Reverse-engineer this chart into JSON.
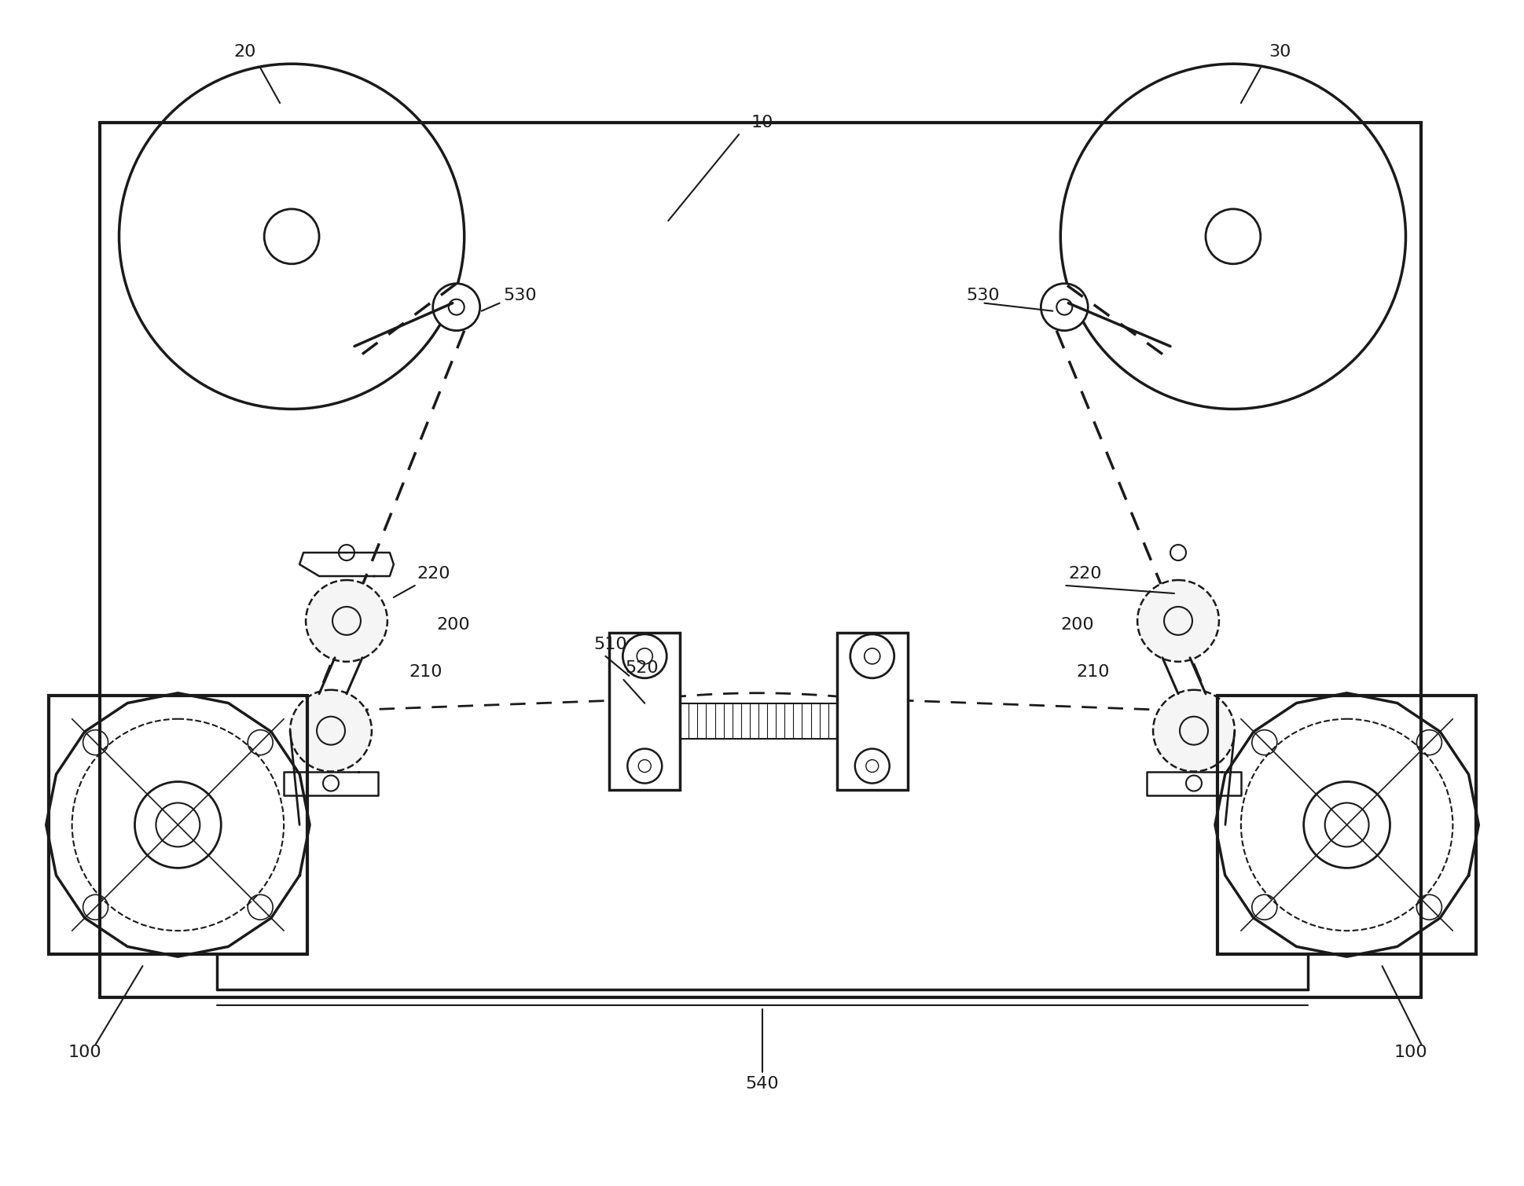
{
  "bg_color": "#ffffff",
  "line_color": "#1a1a1a",
  "figure_width": 19.39,
  "figure_height": 15.09,
  "font_size": 16
}
